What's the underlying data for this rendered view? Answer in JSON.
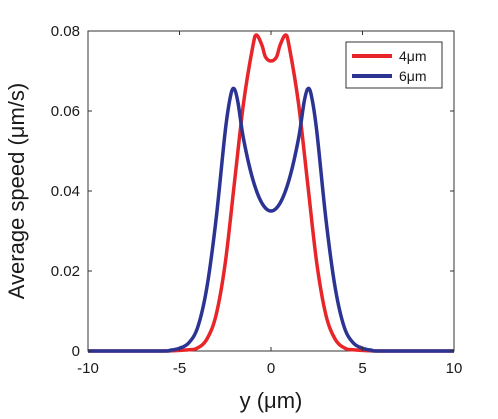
{
  "chart_data": {
    "type": "line",
    "title": "",
    "xlabel": "y (μm)",
    "ylabel": "Average speed (μm/s)",
    "xlim": [
      -10,
      10
    ],
    "ylim": [
      0,
      0.08
    ],
    "x_ticks": [
      -10,
      -5,
      0,
      5,
      10
    ],
    "x_tick_labels": [
      "-10",
      "-5",
      "0",
      "5",
      "10"
    ],
    "y_ticks": [
      0,
      0.02,
      0.04,
      0.06,
      0.08
    ],
    "y_tick_labels": [
      "0",
      "0.02",
      "0.04",
      "0.06",
      "0.08"
    ],
    "grid": false,
    "legend_position": "top-right",
    "series": [
      {
        "name": "4μm",
        "color": "#e8262a",
        "x": [
          -10,
          -6,
          -4.5,
          -4,
          -3.5,
          -3,
          -2.5,
          -2,
          -1.5,
          -1,
          -0.8,
          -0.5,
          -0.3,
          0,
          0.3,
          0.5,
          0.8,
          1,
          1.5,
          2,
          2.5,
          3,
          3.5,
          4,
          4.5,
          6,
          10
        ],
        "y": [
          0,
          0,
          0.0003,
          0.0008,
          0.003,
          0.009,
          0.022,
          0.042,
          0.062,
          0.076,
          0.079,
          0.0765,
          0.0735,
          0.0725,
          0.0735,
          0.0765,
          0.079,
          0.076,
          0.062,
          0.042,
          0.022,
          0.009,
          0.003,
          0.0008,
          0.0003,
          0,
          0
        ]
      },
      {
        "name": "6μm",
        "color": "#2b3393",
        "x": [
          -10,
          -6,
          -5.5,
          -5,
          -4.5,
          -4,
          -3.5,
          -3,
          -2.5,
          -2.2,
          -2,
          -1.8,
          -1.5,
          -1,
          -0.5,
          0,
          0.5,
          1,
          1.5,
          1.8,
          2,
          2.2,
          2.5,
          3,
          3.5,
          4,
          4.5,
          5,
          5.5,
          6,
          10
        ],
        "y": [
          0,
          0,
          0.0002,
          0.0007,
          0.002,
          0.006,
          0.016,
          0.033,
          0.055,
          0.064,
          0.0655,
          0.062,
          0.053,
          0.043,
          0.037,
          0.035,
          0.037,
          0.043,
          0.053,
          0.062,
          0.0655,
          0.064,
          0.055,
          0.033,
          0.016,
          0.006,
          0.002,
          0.0007,
          0.0002,
          0,
          0
        ]
      }
    ]
  }
}
